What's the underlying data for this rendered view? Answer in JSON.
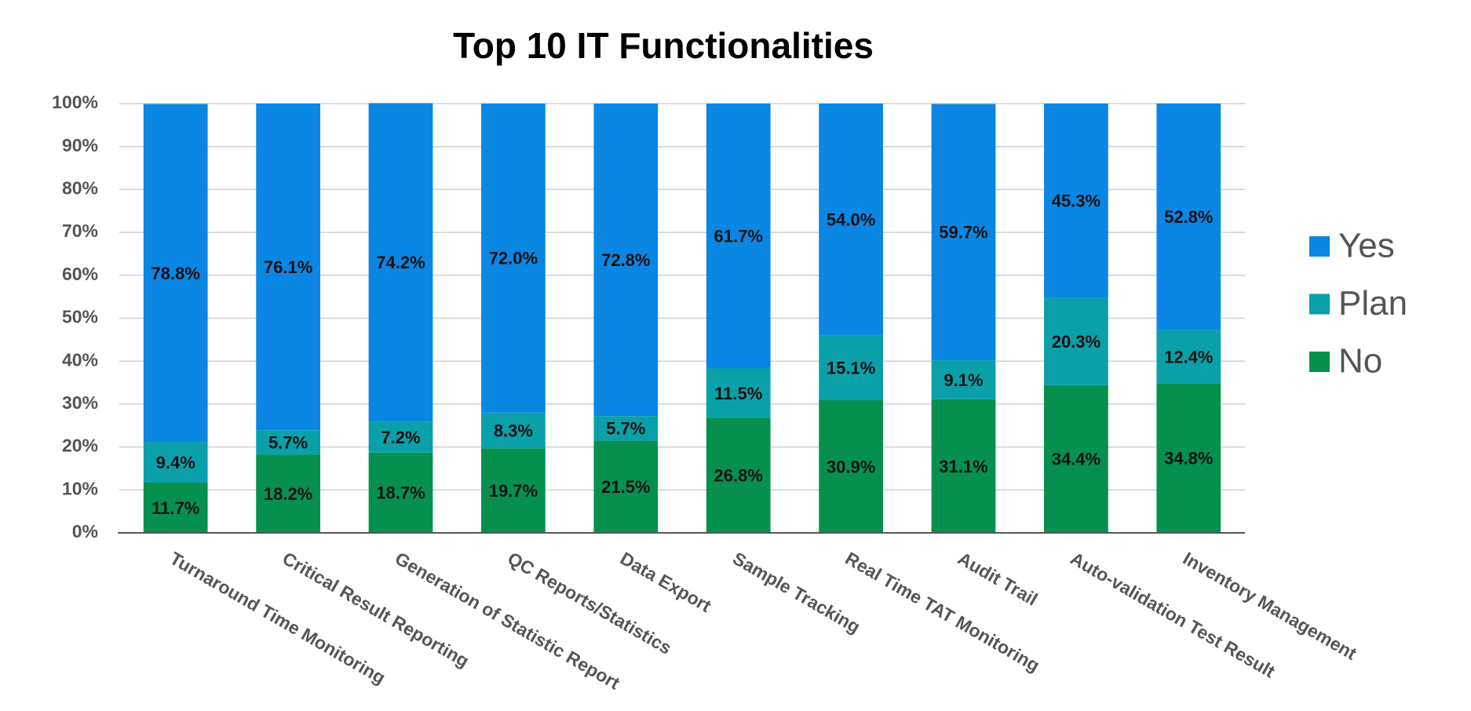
{
  "chart_data": {
    "type": "stacked_bar",
    "title": "Top 10 IT Functionalities",
    "categories": [
      "Turnaround Time Monitoring",
      "Critical Result Reporting",
      "Generation of Statistic Report",
      "QC Reports/Statistics",
      "Data Export",
      "Sample Tracking",
      "Real Time TAT Monitoring",
      "Audit Trail",
      "Auto-validation Test Result",
      "Inventory Management"
    ],
    "series": [
      {
        "name": "No",
        "color": "#069050",
        "values": [
          11.7,
          18.2,
          18.7,
          19.7,
          21.5,
          26.8,
          30.9,
          31.1,
          34.4,
          34.8
        ],
        "value_labels": [
          "11.7%",
          "18.2%",
          "18.7%",
          "19.7%",
          "21.5%",
          "26.8%",
          "30.9%",
          "31.1%",
          "34.4%",
          "34.8%"
        ]
      },
      {
        "name": "Plan",
        "color": "#0aa0aa",
        "values": [
          9.4,
          5.7,
          7.2,
          8.3,
          5.7,
          11.5,
          15.1,
          9.1,
          20.3,
          12.4
        ],
        "value_labels": [
          "9.4%",
          "5.7%",
          "7.2%",
          "8.3%",
          "5.7%",
          "11.5%",
          "15.1%",
          "9.1%",
          "20.3%",
          "12.4%"
        ]
      },
      {
        "name": "Yes",
        "color": "#0a86e3",
        "values": [
          78.8,
          76.1,
          74.2,
          72.0,
          72.8,
          61.7,
          54.0,
          59.7,
          45.3,
          52.8
        ],
        "value_labels": [
          "78.8%",
          "76.1%",
          "74.2%",
          "72.0%",
          "72.8%",
          "61.7%",
          "54.0%",
          "59.7%",
          "45.3%",
          "52.8%"
        ]
      }
    ],
    "ylim": [
      0,
      100
    ],
    "yticks": [
      {
        "value": 0,
        "label": "0%"
      },
      {
        "value": 10,
        "label": "10%"
      },
      {
        "value": 20,
        "label": "20%"
      },
      {
        "value": 30,
        "label": "30%"
      },
      {
        "value": 40,
        "label": "40%"
      },
      {
        "value": 50,
        "label": "50%"
      },
      {
        "value": 60,
        "label": "60%"
      },
      {
        "value": 70,
        "label": "70%"
      },
      {
        "value": 80,
        "label": "80%"
      },
      {
        "value": 90,
        "label": "90%"
      },
      {
        "value": 100,
        "label": "100%"
      }
    ],
    "grid": true,
    "legend": "right"
  }
}
